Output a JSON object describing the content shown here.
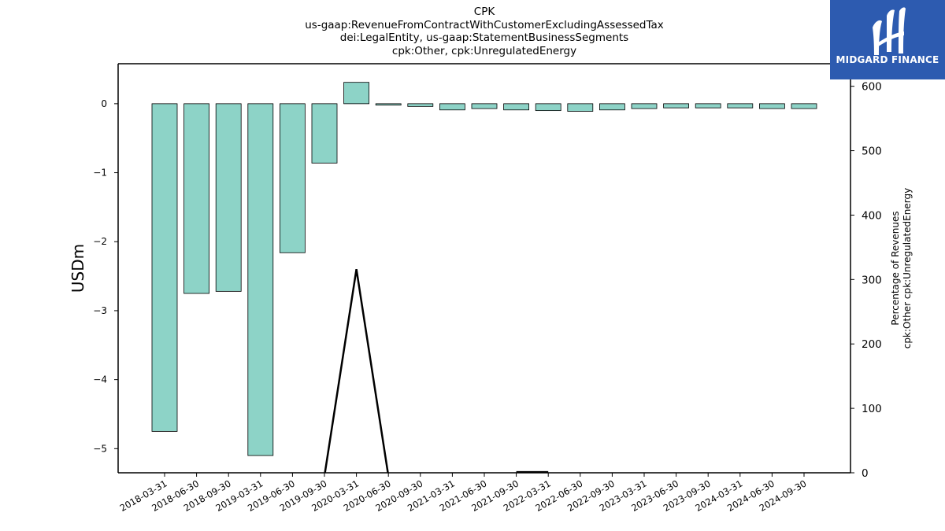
{
  "chart_data": {
    "type": "bar",
    "title_lines": [
      "CPK",
      "us-gaap:RevenueFromContractWithCustomerExcludingAssessedTax",
      "dei:LegalEntity, us-gaap:StatementBusinessSegments",
      "cpk:Other, cpk:UnregulatedEnergy"
    ],
    "categories": [
      "2018-03-31",
      "2018-06-30",
      "2018-09-30",
      "2019-03-31",
      "2019-06-30",
      "2019-09-30",
      "2020-03-31",
      "2020-06-30",
      "2020-09-30",
      "2021-03-31",
      "2021-06-30",
      "2021-09-30",
      "2022-03-31",
      "2022-06-30",
      "2022-09-30",
      "2023-03-31",
      "2023-06-30",
      "2023-09-30",
      "2024-03-31",
      "2024-06-30",
      "2024-09-30"
    ],
    "series": [
      {
        "axis": "left",
        "kind": "bar",
        "color": "#8dd3c7",
        "values": [
          -4.75,
          -2.75,
          -2.72,
          -5.1,
          -2.16,
          -0.86,
          0.31,
          -0.02,
          -0.04,
          -0.09,
          -0.07,
          -0.09,
          -0.1,
          -0.11,
          -0.09,
          -0.07,
          -0.06,
          -0.06,
          -0.06,
          -0.07,
          -0.07
        ]
      },
      {
        "axis": "right",
        "kind": "line",
        "color": "#000000",
        "values": [
          null,
          null,
          null,
          null,
          null,
          -5,
          316,
          -5,
          null,
          null,
          null,
          1,
          1,
          null,
          0,
          null,
          null,
          null,
          null,
          null,
          null
        ]
      }
    ],
    "ylabel": "USDm",
    "ylabel_right_lines": [
      "Percentage of Revenues",
      "cpk:Other cpk:UnregulatedEnergy"
    ],
    "ylim": [
      -5.35,
      0.58
    ],
    "ylim_right": [
      0,
      635
    ],
    "yticks": [
      0,
      -1,
      -2,
      -3,
      -4,
      -5
    ],
    "yticks_right": [
      0,
      100,
      200,
      300,
      400,
      500,
      600
    ],
    "grid": false,
    "legend": "none"
  },
  "logo": {
    "text": "MIDGARD FINANCE",
    "bg_color": "#2d5bb0",
    "fg_color": "#ffffff"
  }
}
